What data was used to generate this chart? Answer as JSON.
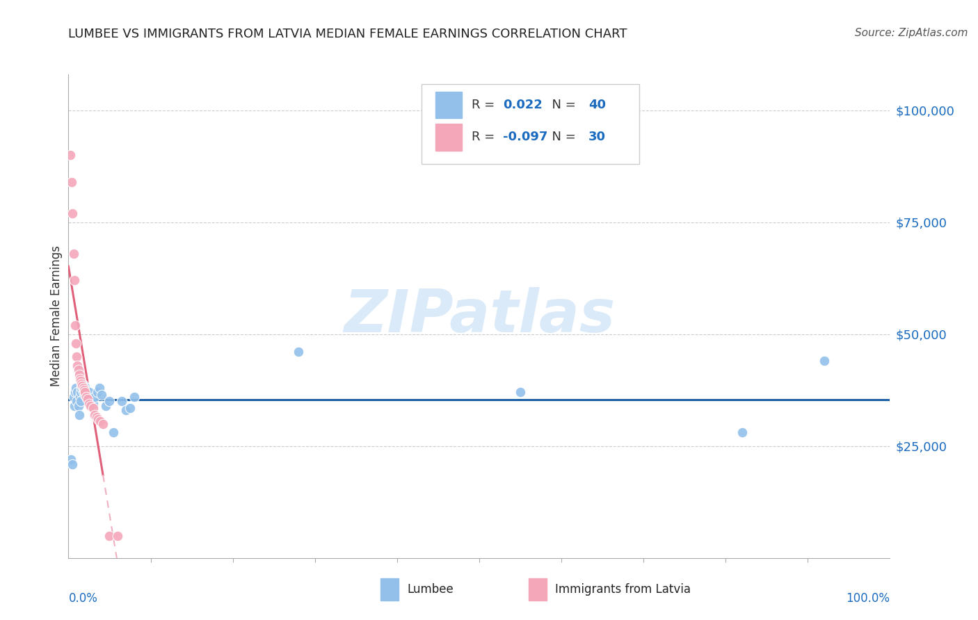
{
  "title": "LUMBEE VS IMMIGRANTS FROM LATVIA MEDIAN FEMALE EARNINGS CORRELATION CHART",
  "source": "Source: ZipAtlas.com",
  "ylabel": "Median Female Earnings",
  "ytick_labels": [
    "$25,000",
    "$50,000",
    "$75,000",
    "$100,000"
  ],
  "ytick_values": [
    25000,
    50000,
    75000,
    100000
  ],
  "ylim": [
    0,
    108000
  ],
  "xlim": [
    0,
    1.0
  ],
  "legend_r_lumbee": "0.022",
  "legend_n_lumbee": "40",
  "legend_r_latvia": "-0.097",
  "legend_n_latvia": "30",
  "lumbee_color": "#92c0eb",
  "latvia_color": "#f4a7b9",
  "lumbee_line_color": "#1a5fa6",
  "latvia_line_solid_color": "#e0607a",
  "latvia_line_dash_color": "#f0b0c0",
  "watermark_color": "#daeaf8",
  "lumbee_x": [
    0.003,
    0.005,
    0.006,
    0.007,
    0.008,
    0.009,
    0.01,
    0.011,
    0.012,
    0.013,
    0.014,
    0.015,
    0.015,
    0.016,
    0.017,
    0.018,
    0.019,
    0.02,
    0.021,
    0.022,
    0.023,
    0.025,
    0.027,
    0.028,
    0.03,
    0.032,
    0.035,
    0.038,
    0.04,
    0.045,
    0.05,
    0.055,
    0.065,
    0.07,
    0.075,
    0.08,
    0.28,
    0.55,
    0.82,
    0.92
  ],
  "lumbee_y": [
    22000,
    21000,
    36000,
    34000,
    37000,
    38000,
    35000,
    37000,
    34000,
    32000,
    36000,
    37000,
    35000,
    38000,
    39000,
    37000,
    38500,
    36500,
    38000,
    37500,
    36000,
    37000,
    35000,
    34000,
    34500,
    36000,
    37000,
    38000,
    36500,
    34000,
    35000,
    28000,
    35000,
    33000,
    33500,
    36000,
    46000,
    37000,
    28000,
    44000
  ],
  "latvia_x": [
    0.002,
    0.004,
    0.005,
    0.006,
    0.007,
    0.008,
    0.009,
    0.01,
    0.011,
    0.012,
    0.013,
    0.014,
    0.015,
    0.016,
    0.017,
    0.018,
    0.019,
    0.02,
    0.022,
    0.023,
    0.025,
    0.027,
    0.03,
    0.032,
    0.034,
    0.036,
    0.039,
    0.042,
    0.05,
    0.06
  ],
  "latvia_y": [
    90000,
    84000,
    77000,
    68000,
    62000,
    52000,
    48000,
    45000,
    43000,
    42000,
    41000,
    40000,
    39500,
    39000,
    38500,
    38000,
    37500,
    37000,
    36000,
    35500,
    34500,
    34000,
    33500,
    32000,
    31500,
    31000,
    30500,
    30000,
    5000,
    5000
  ]
}
